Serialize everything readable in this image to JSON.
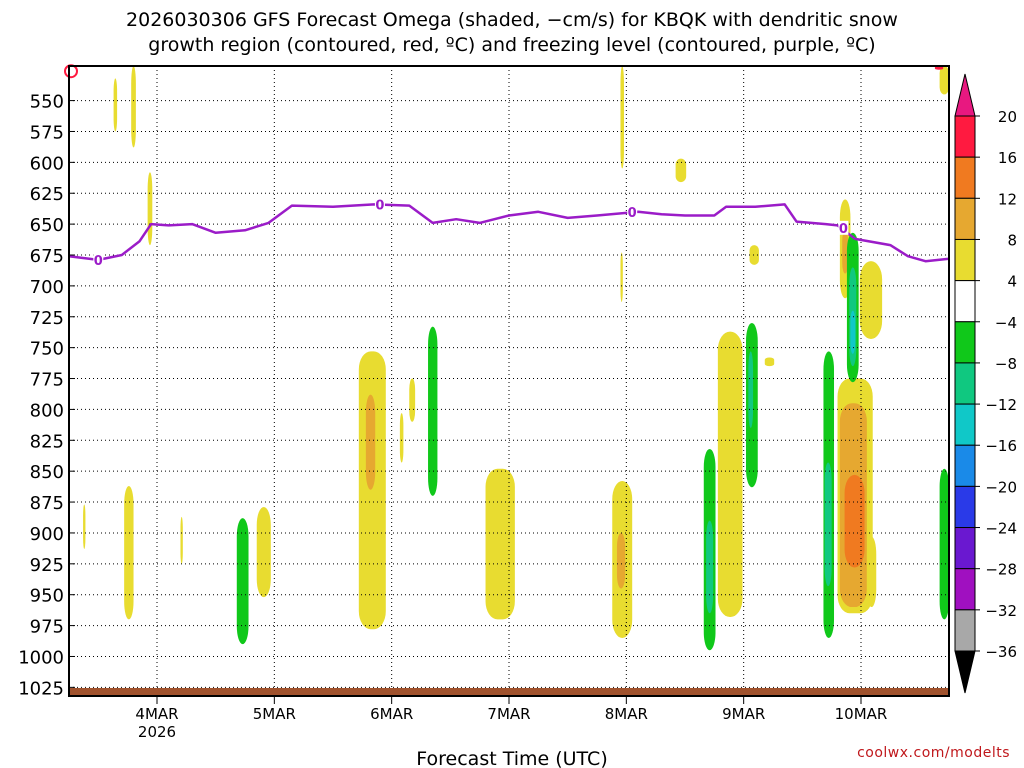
{
  "title_lines": [
    "2026030306 GFS Forecast Omega (shaded, −cm/s) for KBQK with dendritic snow",
    "growth region (contoured, red, ºC) and freezing level (contoured, purple, ºC)"
  ],
  "credit": "coolwx.com/modelts",
  "chart_data": {
    "type": "heatmap",
    "title": "2026030306 GFS Forecast Omega (shaded, −cm/s) for KBQK with dendritic snow growth region (contoured, red, ºC) and freezing level (contoured, purple, ºC)",
    "xlabel": "Forecast Time (UTC)",
    "ylabel": "",
    "x_range_days": [
      3.25,
      10.75
    ],
    "x_ticks": [
      {
        "day": 4,
        "label": "4MAR",
        "sub": "2026"
      },
      {
        "day": 5,
        "label": "5MAR"
      },
      {
        "day": 6,
        "label": "6MAR"
      },
      {
        "day": 7,
        "label": "7MAR"
      },
      {
        "day": 8,
        "label": "8MAR"
      },
      {
        "day": 9,
        "label": "9MAR"
      },
      {
        "day": 10,
        "label": "10MAR"
      }
    ],
    "y_axis": "pressure (hPa), inverted",
    "y_range": [
      1032,
      522
    ],
    "y_ticks": [
      550,
      575,
      600,
      625,
      650,
      675,
      700,
      725,
      750,
      775,
      800,
      825,
      850,
      875,
      900,
      925,
      950,
      975,
      1000,
      1025
    ],
    "grid": true,
    "colorbar": {
      "tick_labels": [
        "20",
        "16",
        "12",
        "8",
        "4",
        "−4",
        "−8",
        "−12",
        "−16",
        "−20",
        "−24",
        "−28",
        "−32",
        "−36"
      ],
      "colors": [
        "#ff1a40",
        "#f07a20",
        "#e6a830",
        "#e8dc30",
        "#ffffff",
        "#10c81a",
        "#10c880",
        "#10c8c8",
        "#1a8ae8",
        "#2a3ae8",
        "#6a18d0",
        "#a010c0",
        "#a8a8a8"
      ],
      "top_arrow_color": "#e81880",
      "bottom_arrow_color": "#000000"
    },
    "freezing_level_series": {
      "name": "0",
      "color": "#9b1cc8",
      "points": [
        [
          3.25,
          676
        ],
        [
          3.5,
          679
        ],
        [
          3.7,
          675
        ],
        [
          3.85,
          664
        ],
        [
          3.95,
          650
        ],
        [
          4.1,
          651
        ],
        [
          4.3,
          650
        ],
        [
          4.5,
          657
        ],
        [
          4.75,
          655
        ],
        [
          4.95,
          649
        ],
        [
          5.15,
          635
        ],
        [
          5.5,
          636
        ],
        [
          5.85,
          634
        ],
        [
          6.15,
          635
        ],
        [
          6.35,
          649
        ],
        [
          6.55,
          646
        ],
        [
          6.75,
          649
        ],
        [
          7.0,
          643
        ],
        [
          7.25,
          640
        ],
        [
          7.5,
          645
        ],
        [
          7.75,
          643
        ],
        [
          8.1,
          640
        ],
        [
          8.3,
          642
        ],
        [
          8.5,
          643
        ],
        [
          8.75,
          643
        ],
        [
          8.85,
          636
        ],
        [
          9.1,
          636
        ],
        [
          9.35,
          634
        ],
        [
          9.45,
          648
        ],
        [
          9.7,
          650
        ],
        [
          9.8,
          651
        ],
        [
          9.95,
          662
        ],
        [
          10.25,
          667
        ],
        [
          10.4,
          676
        ],
        [
          10.55,
          680
        ],
        [
          10.75,
          678
        ]
      ],
      "contour_labels": [
        {
          "day": 3.5,
          "p": 679,
          "text": "0"
        },
        {
          "day": 5.9,
          "p": 634,
          "text": "0"
        },
        {
          "day": 8.05,
          "p": 640,
          "text": "0"
        },
        {
          "day": 9.85,
          "p": 653,
          "text": "0"
        }
      ]
    },
    "ground_band_color": "#a0522d",
    "omega_features": [
      {
        "color": "#e8dc30",
        "d0": 3.78,
        "d1": 3.82,
        "p0": 522,
        "p1": 588
      },
      {
        "color": "#e8dc30",
        "d0": 3.63,
        "d1": 3.66,
        "p0": 532,
        "p1": 575
      },
      {
        "color": "#e8dc30",
        "d0": 3.92,
        "d1": 3.96,
        "p0": 608,
        "p1": 667
      },
      {
        "color": "#e8dc30",
        "d0": 3.72,
        "d1": 3.8,
        "p0": 862,
        "p1": 970
      },
      {
        "color": "#e8dc30",
        "d0": 3.37,
        "d1": 3.39,
        "p0": 877,
        "p1": 913
      },
      {
        "color": "#e8dc30",
        "d0": 4.2,
        "d1": 4.22,
        "p0": 887,
        "p1": 925
      },
      {
        "color": "#10c81a",
        "d0": 4.68,
        "d1": 4.78,
        "p0": 888,
        "p1": 990
      },
      {
        "color": "#e8dc30",
        "d0": 4.85,
        "d1": 4.97,
        "p0": 879,
        "p1": 952
      },
      {
        "color": "#e8dc30",
        "d0": 5.72,
        "d1": 5.95,
        "p0": 753,
        "p1": 978
      },
      {
        "color": "#e6a830",
        "d0": 5.78,
        "d1": 5.86,
        "p0": 788,
        "p1": 865
      },
      {
        "color": "#e8dc30",
        "d0": 6.15,
        "d1": 6.2,
        "p0": 775,
        "p1": 810
      },
      {
        "color": "#e8dc30",
        "d0": 6.07,
        "d1": 6.1,
        "p0": 803,
        "p1": 843
      },
      {
        "color": "#10c81a",
        "d0": 6.31,
        "d1": 6.39,
        "p0": 733,
        "p1": 870
      },
      {
        "color": "#e8dc30",
        "d0": 6.8,
        "d1": 7.05,
        "p0": 848,
        "p1": 970
      },
      {
        "color": "#e8dc30",
        "d0": 7.88,
        "d1": 8.05,
        "p0": 858,
        "p1": 985
      },
      {
        "color": "#e6a830",
        "d0": 7.92,
        "d1": 7.99,
        "p0": 900,
        "p1": 945
      },
      {
        "color": "#e8dc30",
        "d0": 7.95,
        "d1": 7.98,
        "p0": 522,
        "p1": 605
      },
      {
        "color": "#e8dc30",
        "d0": 7.95,
        "d1": 7.97,
        "p0": 673,
        "p1": 713
      },
      {
        "color": "#e8dc30",
        "d0": 8.42,
        "d1": 8.51,
        "p0": 597,
        "p1": 616
      },
      {
        "color": "#10c81a",
        "d0": 8.66,
        "d1": 8.76,
        "p0": 832,
        "p1": 995
      },
      {
        "color": "#10c880",
        "d0": 8.68,
        "d1": 8.74,
        "p0": 890,
        "p1": 965
      },
      {
        "color": "#e8dc30",
        "d0": 8.78,
        "d1": 8.99,
        "p0": 737,
        "p1": 968
      },
      {
        "color": "#10c81a",
        "d0": 9.02,
        "d1": 9.12,
        "p0": 730,
        "p1": 863
      },
      {
        "color": "#10c880",
        "d0": 9.04,
        "d1": 9.08,
        "p0": 753,
        "p1": 815
      },
      {
        "color": "#e8dc30",
        "d0": 9.18,
        "d1": 9.26,
        "p0": 758,
        "p1": 765
      },
      {
        "color": "#e8dc30",
        "d0": 9.05,
        "d1": 9.13,
        "p0": 667,
        "p1": 683
      },
      {
        "color": "#10c81a",
        "d0": 9.68,
        "d1": 9.77,
        "p0": 753,
        "p1": 985
      },
      {
        "color": "#10c880",
        "d0": 9.69,
        "d1": 9.75,
        "p0": 843,
        "p1": 943
      },
      {
        "color": "#e8dc30",
        "d0": 9.8,
        "d1": 10.1,
        "p0": 775,
        "p1": 965
      },
      {
        "color": "#e6a830",
        "d0": 9.82,
        "d1": 10.05,
        "p0": 795,
        "p1": 960
      },
      {
        "color": "#f07a20",
        "d0": 9.86,
        "d1": 10.03,
        "p0": 853,
        "p1": 928
      },
      {
        "color": "#e8dc30",
        "d0": 10.05,
        "d1": 10.13,
        "p0": 903,
        "p1": 960
      },
      {
        "color": "#e8dc30",
        "d0": 9.82,
        "d1": 9.91,
        "p0": 630,
        "p1": 710
      },
      {
        "color": "#e6a830",
        "d0": 9.84,
        "d1": 9.89,
        "p0": 655,
        "p1": 690
      },
      {
        "color": "#10c81a",
        "d0": 9.88,
        "d1": 9.98,
        "p0": 657,
        "p1": 778
      },
      {
        "color": "#10c880",
        "d0": 9.9,
        "d1": 9.96,
        "p0": 685,
        "p1": 765
      },
      {
        "color": "#10c8c8",
        "d0": 9.91,
        "d1": 9.95,
        "p0": 720,
        "p1": 755
      },
      {
        "color": "#e8dc30",
        "d0": 9.99,
        "d1": 10.18,
        "p0": 680,
        "p1": 743
      },
      {
        "color": "#10c81a",
        "d0": 10.67,
        "d1": 10.75,
        "p0": 848,
        "p1": 970
      },
      {
        "color": "#e8dc30",
        "d0": 10.67,
        "d1": 10.75,
        "p0": 522,
        "p1": 545
      },
      {
        "color": "#ff1a40",
        "d0": 10.63,
        "d1": 10.7,
        "p0": 522,
        "p1": 525
      }
    ],
    "dendritic_region_fragments": [
      {
        "color": "#ff1a40",
        "day": 3.25,
        "p": 523
      }
    ]
  }
}
